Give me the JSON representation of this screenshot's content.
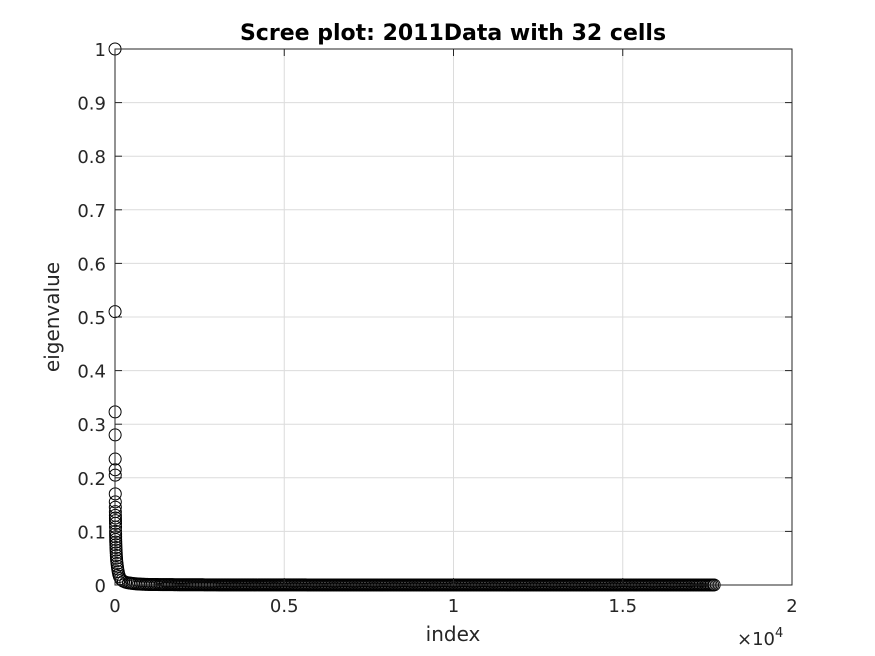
{
  "chart_data": {
    "type": "scatter",
    "title": "Scree plot: 2011Data with 32 cells",
    "xlabel": "index",
    "ylabel": "eigenvalue",
    "xlim": [
      0,
      20000
    ],
    "ylim": [
      0,
      1
    ],
    "x_exponent_label": {
      "base": "×10",
      "exp": "4"
    },
    "x_ticks": [
      {
        "value": 0,
        "label": "0"
      },
      {
        "value": 5000,
        "label": "0.5"
      },
      {
        "value": 10000,
        "label": "1"
      },
      {
        "value": 15000,
        "label": "1.5"
      },
      {
        "value": 20000,
        "label": "2"
      }
    ],
    "y_ticks": [
      {
        "value": 0,
        "label": "0"
      },
      {
        "value": 0.1,
        "label": "0.1"
      },
      {
        "value": 0.2,
        "label": "0.2"
      },
      {
        "value": 0.3,
        "label": "0.3"
      },
      {
        "value": 0.4,
        "label": "0.4"
      },
      {
        "value": 0.5,
        "label": "0.5"
      },
      {
        "value": 0.6,
        "label": "0.6"
      },
      {
        "value": 0.7,
        "label": "0.7"
      },
      {
        "value": 0.8,
        "label": "0.8"
      },
      {
        "value": 0.9,
        "label": "0.9"
      },
      {
        "value": 1,
        "label": "1"
      }
    ],
    "grid": true,
    "marker": "circle",
    "marker_color": "#000000",
    "points": [
      [
        1,
        1.0
      ],
      [
        2,
        0.51
      ],
      [
        3,
        0.323
      ],
      [
        4,
        0.28
      ],
      [
        5,
        0.235
      ],
      [
        6,
        0.215
      ],
      [
        7,
        0.205
      ],
      [
        8,
        0.17
      ],
      [
        9,
        0.155
      ],
      [
        10,
        0.145
      ],
      [
        11,
        0.137
      ],
      [
        12,
        0.13
      ],
      [
        13,
        0.125
      ],
      [
        14,
        0.12
      ],
      [
        15,
        0.115
      ],
      [
        16,
        0.108
      ],
      [
        17,
        0.1
      ],
      [
        18,
        0.095
      ],
      [
        19,
        0.09
      ],
      [
        20,
        0.085
      ],
      [
        22,
        0.08
      ],
      [
        25,
        0.075
      ],
      [
        28,
        0.07
      ],
      [
        32,
        0.065
      ],
      [
        36,
        0.06
      ],
      [
        40,
        0.055
      ],
      [
        45,
        0.05
      ],
      [
        50,
        0.045
      ],
      [
        60,
        0.04
      ],
      [
        70,
        0.035
      ],
      [
        80,
        0.03
      ],
      [
        95,
        0.025
      ],
      [
        110,
        0.02
      ],
      [
        130,
        0.016
      ],
      [
        160,
        0.012
      ],
      [
        200,
        0.009
      ],
      [
        250,
        0.007
      ],
      [
        320,
        0.005
      ],
      [
        400,
        0.004
      ],
      [
        500,
        0.003
      ],
      [
        650,
        0.002
      ],
      [
        800,
        0.0015
      ],
      [
        1000,
        0.001
      ],
      [
        1300,
        0.0008
      ],
      [
        1700,
        0.0006
      ],
      [
        2200,
        0.0004
      ],
      [
        3000,
        0.0003
      ],
      [
        4000,
        0.0002
      ],
      [
        5000,
        0.00015
      ],
      [
        6000,
        0.0001
      ],
      [
        7000,
        0.0001
      ],
      [
        8000,
        0.0001
      ],
      [
        9000,
        0.0001
      ],
      [
        10000,
        0.0001
      ],
      [
        11000,
        0.0001
      ],
      [
        12000,
        0.0001
      ],
      [
        13000,
        0.0001
      ],
      [
        14000,
        0.0001
      ],
      [
        15000,
        0.0001
      ],
      [
        16000,
        0.0001
      ],
      [
        17000,
        0.0001
      ],
      [
        17700,
        0.0001
      ]
    ]
  }
}
